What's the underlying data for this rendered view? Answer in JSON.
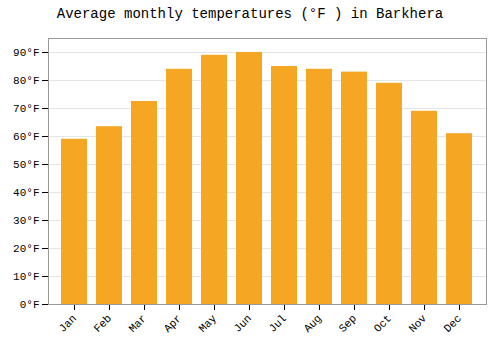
{
  "chart_data": {
    "type": "bar",
    "title": "Average monthly temperatures (°F ) in Barkhera",
    "categories": [
      "Jan",
      "Feb",
      "Mar",
      "Apr",
      "May",
      "Jun",
      "Jul",
      "Aug",
      "Sep",
      "Oct",
      "Nov",
      "Dec"
    ],
    "values": [
      59,
      63.5,
      72.5,
      84,
      89,
      90,
      85,
      84,
      83,
      79,
      69,
      61
    ],
    "color": "#F5A623",
    "ylim": [
      0,
      95
    ],
    "yticks": [
      {
        "value": 0,
        "label": "0°F"
      },
      {
        "value": 10,
        "label": "10°F"
      },
      {
        "value": 20,
        "label": "20°F"
      },
      {
        "value": 30,
        "label": "30°F"
      },
      {
        "value": 40,
        "label": "40°F"
      },
      {
        "value": 50,
        "label": "50°F"
      },
      {
        "value": 60,
        "label": "60°F"
      },
      {
        "value": 70,
        "label": "70°F"
      },
      {
        "value": 80,
        "label": "80°F"
      },
      {
        "value": 90,
        "label": "90°F"
      }
    ],
    "grid": true
  }
}
